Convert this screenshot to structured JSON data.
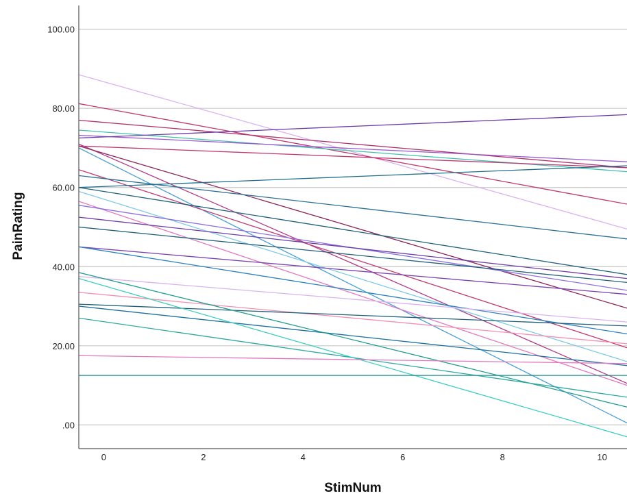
{
  "chart_data": {
    "type": "line",
    "title": "",
    "xlabel": "StimNum",
    "ylabel": "PainRating",
    "xlim": [
      -0.5,
      10.5
    ],
    "ylim": [
      -6,
      106
    ],
    "grid": "horizontal",
    "legend": "none",
    "x_ticks": [
      {
        "value": 0,
        "label": "0"
      },
      {
        "value": 2,
        "label": "2"
      },
      {
        "value": 4,
        "label": "4"
      },
      {
        "value": 6,
        "label": "6"
      },
      {
        "value": 8,
        "label": "8"
      },
      {
        "value": 10,
        "label": "10"
      }
    ],
    "y_ticks": [
      {
        "value": 0,
        "label": ".00"
      },
      {
        "value": 20,
        "label": "20.00"
      },
      {
        "value": 40,
        "label": "40.00"
      },
      {
        "value": 60,
        "label": "60.00"
      },
      {
        "value": 80,
        "label": "80.00"
      },
      {
        "value": 100,
        "label": "100.00"
      }
    ],
    "colors": {
      "grid": "#c8c8c8",
      "axis": "#555555"
    },
    "series": [
      {
        "color": "#d9b3f0",
        "x": [
          -0.5,
          10.5
        ],
        "y": [
          88.5,
          49.5
        ]
      },
      {
        "color": "#c0386e",
        "x": [
          -0.5,
          10.5
        ],
        "y": [
          81.2,
          55.8
        ]
      },
      {
        "color": "#b0306a",
        "x": [
          -0.5,
          10.5
        ],
        "y": [
          77.0,
          65.0
        ]
      },
      {
        "color": "#3fbfae",
        "x": [
          -0.5,
          10.5
        ],
        "y": [
          74.5,
          64.0
        ]
      },
      {
        "color": "#9b59d0",
        "x": [
          -0.5,
          10.5
        ],
        "y": [
          73.2,
          66.5
        ]
      },
      {
        "color": "#6a3aa8",
        "x": [
          -0.5,
          10.5
        ],
        "y": [
          72.5,
          78.4
        ]
      },
      {
        "color": "#c0386e",
        "x": [
          -0.5,
          10.5
        ],
        "y": [
          70.5,
          65.0
        ]
      },
      {
        "color": "#b03a8a",
        "x": [
          -0.5,
          10.5
        ],
        "y": [
          71.0,
          10.5
        ]
      },
      {
        "color": "#8b2255",
        "x": [
          -0.5,
          10.5
        ],
        "y": [
          70.5,
          29.5
        ]
      },
      {
        "color": "#4a9fd8",
        "x": [
          -0.5,
          10.5
        ],
        "y": [
          70.0,
          0.5
        ]
      },
      {
        "color": "#c0386e",
        "x": [
          -0.5,
          10.5
        ],
        "y": [
          64.5,
          19.5
        ]
      },
      {
        "color": "#1f6f8b",
        "x": [
          -0.5,
          10.5
        ],
        "y": [
          60.0,
          65.5
        ]
      },
      {
        "color": "#1f5f7b",
        "x": [
          -0.5,
          10.5
        ],
        "y": [
          60.0,
          38.0
        ]
      },
      {
        "color": "#2a6f96",
        "x": [
          -0.5,
          10.5
        ],
        "y": [
          63.0,
          47.0
        ]
      },
      {
        "color": "#7ec9e8",
        "x": [
          -0.5,
          10.5
        ],
        "y": [
          59.0,
          16.0
        ]
      },
      {
        "color": "#e377c2",
        "x": [
          -0.5,
          10.5
        ],
        "y": [
          56.5,
          10.0
        ]
      },
      {
        "color": "#8a6fe0",
        "x": [
          -0.5,
          10.5
        ],
        "y": [
          55.5,
          34.0
        ]
      },
      {
        "color": "#6a3aa8",
        "x": [
          -0.5,
          10.5
        ],
        "y": [
          52.5,
          37.0
        ]
      },
      {
        "color": "#1f5f7b",
        "x": [
          -0.5,
          10.5
        ],
        "y": [
          50.0,
          36.0
        ]
      },
      {
        "color": "#7a3fb0",
        "x": [
          -0.5,
          10.5
        ],
        "y": [
          45.0,
          33.0
        ]
      },
      {
        "color": "#2a7fc0",
        "x": [
          -0.5,
          10.5
        ],
        "y": [
          45.0,
          23.0
        ]
      },
      {
        "color": "#d9b3f0",
        "x": [
          -0.5,
          10.5
        ],
        "y": [
          37.5,
          26.0
        ]
      },
      {
        "color": "#f48fb1",
        "x": [
          -0.5,
          10.5
        ],
        "y": [
          33.5,
          20.5
        ]
      },
      {
        "color": "#1f5f7b",
        "x": [
          -0.5,
          10.5
        ],
        "y": [
          30.5,
          25.0
        ]
      },
      {
        "color": "#1a6fa0",
        "x": [
          -0.5,
          10.5
        ],
        "y": [
          30.0,
          15.0
        ]
      },
      {
        "color": "#1f9e90",
        "x": [
          -0.5,
          10.5
        ],
        "y": [
          38.5,
          4.5
        ]
      },
      {
        "color": "#3ccfc0",
        "x": [
          -0.5,
          10.5
        ],
        "y": [
          37.0,
          -3.0
        ]
      },
      {
        "color": "#2aa9a0",
        "x": [
          -0.5,
          10.5
        ],
        "y": [
          27.0,
          7.0
        ]
      },
      {
        "color": "#e377c2",
        "x": [
          -0.5,
          10.5
        ],
        "y": [
          17.5,
          15.5
        ]
      },
      {
        "color": "#1f8f8f",
        "x": [
          -0.5,
          10.5
        ],
        "y": [
          12.5,
          12.5
        ]
      }
    ]
  }
}
